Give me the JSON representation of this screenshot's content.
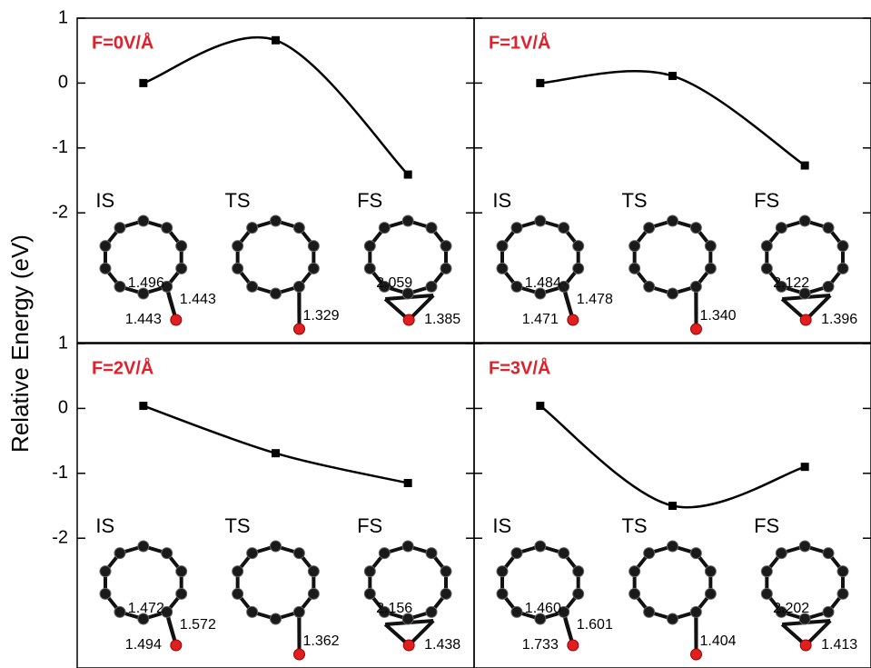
{
  "chart_data": [
    {
      "type": "line",
      "title": "F=0V/Å",
      "ylabel": "Relative Energy (eV)",
      "categories": [
        "IS",
        "TS",
        "FS"
      ],
      "values": [
        0,
        0.66,
        -1.41
      ],
      "color": "#000000",
      "title_color": "#e0202a",
      "ylim": [
        -4,
        1
      ],
      "yticks": [
        1,
        0,
        -1,
        -2
      ],
      "bond_labels": [
        [
          "1.496",
          "1.443",
          "1.443"
        ],
        [
          "1.329"
        ],
        [
          "2.059",
          "1.385"
        ]
      ]
    },
    {
      "type": "line",
      "title": "F=1V/Å",
      "categories": [
        "IS",
        "TS",
        "FS"
      ],
      "values": [
        0,
        0.11,
        -1.27
      ],
      "color": "#000000",
      "title_color": "#e0202a",
      "ylim": [
        -4,
        1
      ],
      "yticks": [
        1,
        0,
        -1,
        -2
      ],
      "bond_labels": [
        [
          "1.484",
          "1.478",
          "1.471"
        ],
        [
          "1.340"
        ],
        [
          "2.122",
          "1.396"
        ]
      ]
    },
    {
      "type": "line",
      "title": "F=2V/Å",
      "categories": [
        "IS",
        "TS",
        "FS"
      ],
      "values": [
        0.04,
        -0.69,
        -1.15
      ],
      "color": "#000000",
      "title_color": "#e0202a",
      "ylim": [
        -4,
        1
      ],
      "yticks": [
        1,
        0,
        -1,
        -2
      ],
      "bond_labels": [
        [
          "1.472",
          "1.572",
          "1.494"
        ],
        [
          "1.362"
        ],
        [
          "2.156",
          "1.438"
        ]
      ]
    },
    {
      "type": "line",
      "title": "F=3V/Å",
      "categories": [
        "IS",
        "TS",
        "FS"
      ],
      "values": [
        0.04,
        -1.5,
        -0.9
      ],
      "color": "#000000",
      "title_color": "#e0202a",
      "ylim": [
        -4,
        1
      ],
      "yticks": [
        1,
        0,
        -1,
        -2
      ],
      "bond_labels": [
        [
          "1.460",
          "1.601",
          "1.733"
        ],
        [
          "1.404"
        ],
        [
          "2.202",
          "1.413"
        ]
      ]
    }
  ]
}
